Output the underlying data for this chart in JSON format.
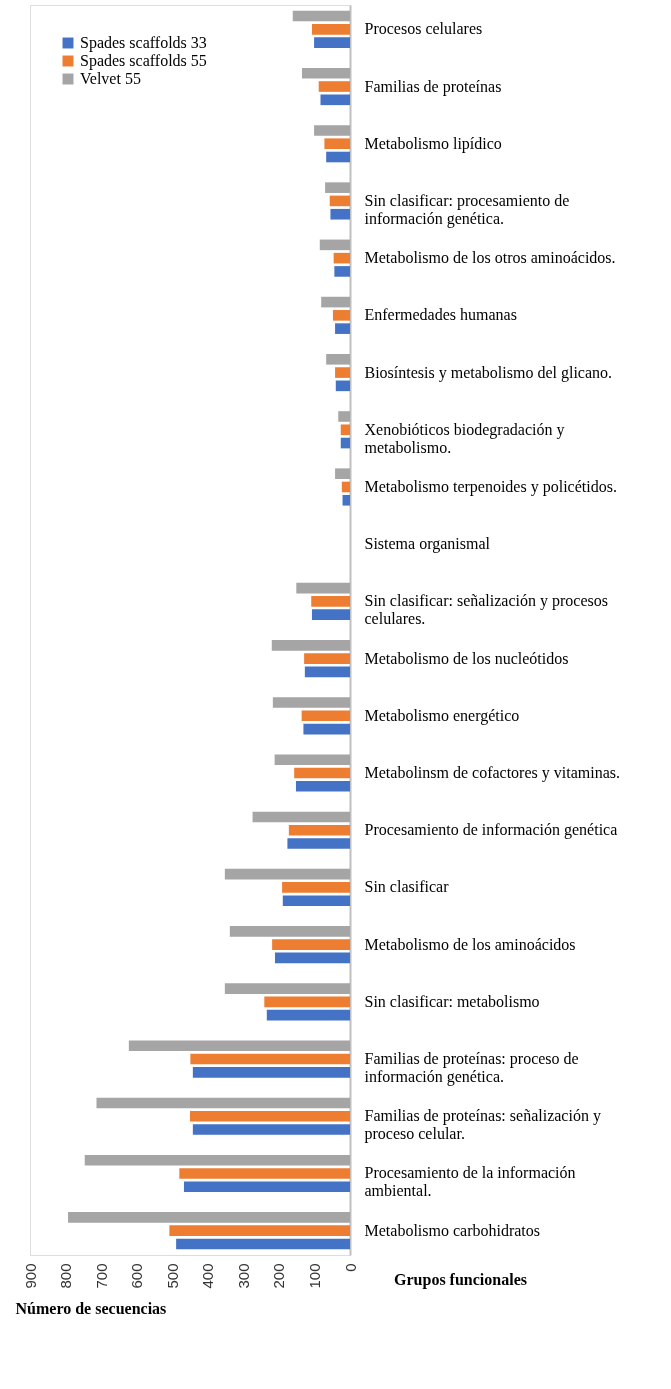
{
  "chart_data": {
    "type": "bar",
    "orientation": "horizontal",
    "xlabel": "Número de secuencias",
    "ylabel": "Grupos funcionales",
    "categories": [
      "Procesos celulares",
      "Familias de proteínas",
      "Metabolismo lipídico",
      "Sin clasificar: procesamiento de información genética.",
      "Metabolismo de los otros aminoácidos.",
      "Enfermedades humanas",
      "Biosíntesis y metabolismo del glicano.",
      "Xenobióticos biodegradación y metabolismo.",
      "Metabolismo terpenoides y policétidos.",
      "Sistema organismal",
      "Sin clasificar: señalización y procesos celulares.",
      "Metabolismo de los nucleótidos",
      "Metabolismo energético",
      "Metabolinsm de cofactores y vitaminas.",
      "Procesamiento de información genética",
      "Sin clasificar",
      "Metabolismo de los aminoácidos",
      "Sin clasificar: metabolismo",
      "Familias de proteínas: proceso de información genética.",
      "Familias de proteínas: señalización y proceso celular.",
      "Procesamiento de la información ambiental.",
      "Metabolismo carbohidratos"
    ],
    "series": [
      {
        "name": "Spades scaffolds 33",
        "color": "#4472c4",
        "values": [
          101,
          83,
          67,
          55,
          44,
          42,
          40,
          26,
          21,
          0,
          107,
          127,
          131,
          152,
          176,
          189,
          211,
          234,
          442,
          442,
          467,
          489
        ]
      },
      {
        "name": "Spades scaffolds 55",
        "color": "#ed7d31",
        "values": [
          107,
          88,
          72,
          57,
          46,
          48,
          42,
          26,
          23,
          0,
          109,
          129,
          136,
          157,
          172,
          191,
          219,
          241,
          449,
          450,
          480,
          508
        ]
      },
      {
        "name": "Velvet 55",
        "color": "#a5a5a5",
        "values": [
          161,
          135,
          101,
          70,
          85,
          81,
          67,
          33,
          42,
          0,
          151,
          220,
          217,
          212,
          274,
          352,
          338,
          352,
          622,
          713,
          746,
          793
        ]
      }
    ],
    "xlim": [
      900,
      0
    ],
    "xticks": [
      900,
      800,
      700,
      600,
      500,
      400,
      300,
      200,
      100,
      0
    ],
    "grid": false,
    "legend": "top left"
  }
}
